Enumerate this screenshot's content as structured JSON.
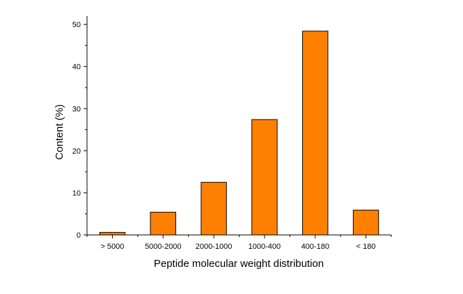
{
  "chart_data": {
    "type": "bar",
    "title": "",
    "xlabel": "Peptide molecular weight distribution",
    "ylabel": "Content (%)",
    "categories": [
      "> 5000",
      "5000-2000",
      "2000-1000",
      "1000-400",
      "400-180",
      "< 180"
    ],
    "values": [
      0.6,
      5.4,
      12.5,
      27.4,
      48.4,
      5.9
    ],
    "ylim": [
      0,
      52
    ],
    "yticks": [
      0,
      10,
      20,
      30,
      40,
      50
    ],
    "grid": false,
    "bar_color": "#FF8000",
    "bar_edge_color": "#000000"
  }
}
